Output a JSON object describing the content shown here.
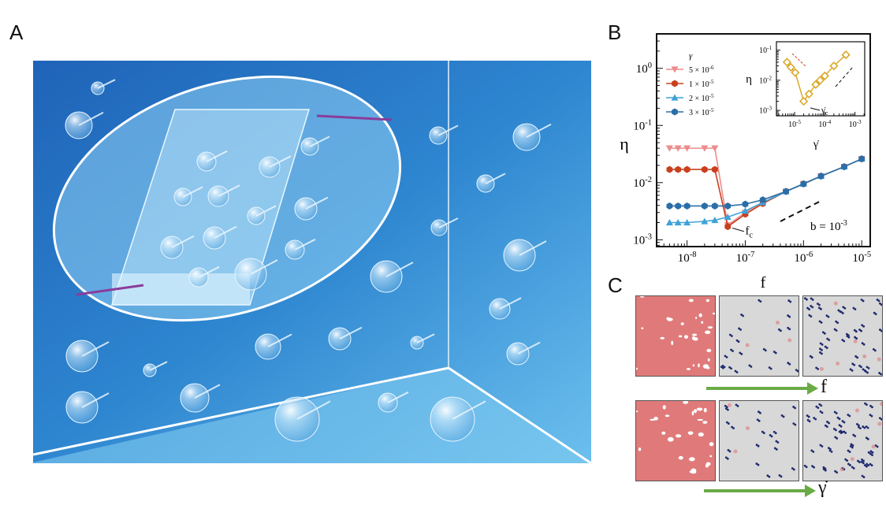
{
  "panels": {
    "a": "A",
    "b": "B",
    "c": "C"
  },
  "panel_c": {
    "arrow_top_label": "f",
    "arrow_bottom_label": "γ̇"
  },
  "colors": {
    "amorphous": "#e07a7a",
    "crystal_bg": "#d8d8d8",
    "defect": "#1e2a6e",
    "arrow": "#6aab46",
    "inset": "#d9a520"
  },
  "chart_data": [
    {
      "type": "line",
      "xscale": "log",
      "yscale": "log",
      "xlabel": "f",
      "ylabel": "η",
      "xlim": [
        3e-09,
        1.4e-05
      ],
      "ylim": [
        0.00076,
        4
      ],
      "xticks": [
        "10^-8",
        "10^-7",
        "10^-6",
        "10^-5"
      ],
      "yticks": [
        "10^0",
        "10^-1",
        "10^-2",
        "10^-3"
      ],
      "legend_title": "γ",
      "legend_position": "top-left",
      "annotation_fc": "f_c",
      "annotation_b": "b = 10^-3",
      "guide_line": {
        "style": "dashed",
        "x": [
          4e-07,
          2e-06
        ],
        "y": [
          0.0021,
          0.0048
        ]
      },
      "x": [
        5e-09,
        7e-09,
        1e-08,
        2e-08,
        3e-08,
        5e-08,
        1e-07,
        2e-07,
        5e-07,
        1e-06,
        2e-06,
        5e-06,
        1e-05
      ],
      "series": [
        {
          "name": "5 × 10^-6",
          "color": "#ec8c8c",
          "marker": "triangle-down",
          "values": [
            0.04,
            0.04,
            0.04,
            0.04,
            0.04,
            0.0018,
            0.003,
            0.0045,
            0.007,
            0.0095,
            0.013,
            0.019,
            0.026
          ]
        },
        {
          "name": "1 × 10^-5",
          "color": "#c8401e",
          "marker": "hexagon",
          "values": [
            0.017,
            0.017,
            0.017,
            0.017,
            0.017,
            0.0017,
            0.0028,
            0.0043,
            0.007,
            0.0095,
            0.013,
            0.019,
            0.026
          ]
        },
        {
          "name": "2 × 10^-5",
          "color": "#3fa2d8",
          "marker": "triangle-up",
          "values": [
            0.002,
            0.002,
            0.002,
            0.0021,
            0.0022,
            0.0025,
            0.0032,
            0.0045,
            0.007,
            0.0095,
            0.013,
            0.019,
            0.026
          ]
        },
        {
          "name": "3 × 10^-5",
          "color": "#2a6ea8",
          "marker": "hexagon",
          "values": [
            0.0039,
            0.0039,
            0.0039,
            0.0039,
            0.0039,
            0.0039,
            0.0042,
            0.005,
            0.007,
            0.0095,
            0.013,
            0.019,
            0.026
          ]
        }
      ]
    },
    {
      "type": "line",
      "inset": true,
      "xscale": "log",
      "yscale": "log",
      "xlabel": "γ̇",
      "ylabel": "η",
      "xlim": [
        2.5e-06,
        0.0021
      ],
      "ylim": [
        0.00066,
        0.19
      ],
      "xticks": [
        "10^-5",
        "10^-4",
        "10^-3"
      ],
      "yticks": [
        "10^-1",
        "10^-2",
        "10^-3"
      ],
      "annotation": "γ̇_c",
      "x": [
        5.6e-06,
        7.5e-06,
        1.05e-05,
        2e-05,
        3e-05,
        5e-05,
        7e-05,
        0.0001,
        0.0002,
        0.0005
      ],
      "series": [
        {
          "color": "#d9a520",
          "marker": "diamond-open",
          "values": [
            0.04,
            0.027,
            0.018,
            0.002,
            0.0035,
            0.0072,
            0.01,
            0.014,
            0.03,
            0.07
          ]
        }
      ]
    }
  ]
}
